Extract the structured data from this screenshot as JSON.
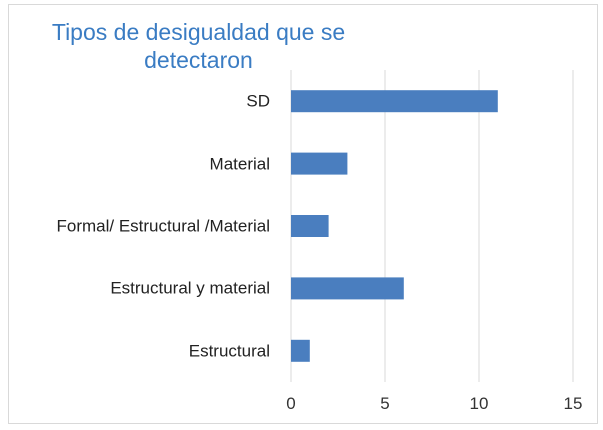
{
  "chart_data": {
    "type": "bar",
    "orientation": "horizontal",
    "title": "Tipos de desigualdad que se detectaron",
    "categories": [
      "SD",
      "Material",
      "Formal/ Estructural /Material",
      "Estructural y material",
      "Estructural"
    ],
    "values": [
      11,
      3,
      2,
      6,
      1
    ],
    "color": "#4a7ebf",
    "xlim": [
      0,
      15
    ],
    "xticks": [
      0,
      5,
      10,
      15
    ],
    "grid": true
  }
}
